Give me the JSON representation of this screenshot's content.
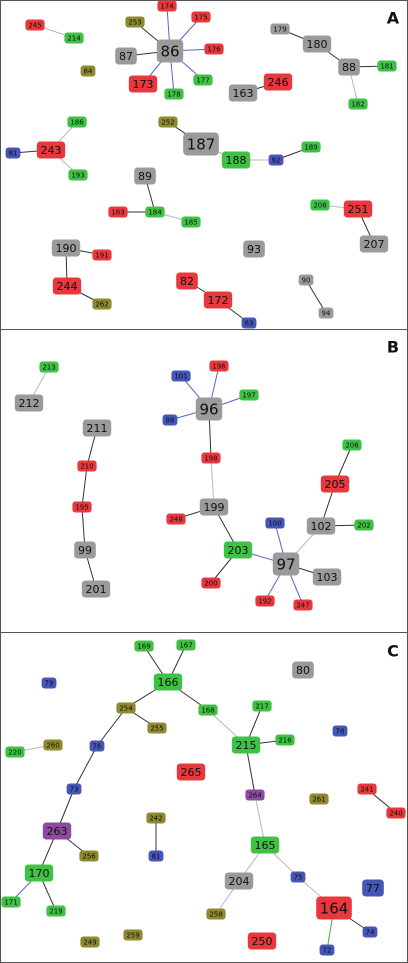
{
  "colors": {
    "red": "#e8383d",
    "green": "#3ec144",
    "gray": "#9a9a9a",
    "blue": "#4555b8",
    "olive": "#8f8a2e",
    "purple": "#8e4aa0",
    "edge_dark": "#333333",
    "edge_light": "#b8b8b8",
    "edge_blue": "#5566c8",
    "edge_green": "#44aa44"
  },
  "panels": [
    {
      "label": "A",
      "nodes": [
        {
          "id": "245",
          "color": "red"
        },
        {
          "id": "214",
          "color": "green"
        },
        {
          "id": "84",
          "color": "olive"
        },
        {
          "id": "253",
          "color": "olive"
        },
        {
          "id": "174",
          "color": "red"
        },
        {
          "id": "175",
          "color": "red"
        },
        {
          "id": "87",
          "color": "gray"
        },
        {
          "id": "86",
          "color": "gray"
        },
        {
          "id": "176",
          "color": "red"
        },
        {
          "id": "173",
          "color": "red"
        },
        {
          "id": "178",
          "color": "green"
        },
        {
          "id": "177",
          "color": "green"
        },
        {
          "id": "179",
          "color": "gray"
        },
        {
          "id": "180",
          "color": "gray"
        },
        {
          "id": "88",
          "color": "gray"
        },
        {
          "id": "181",
          "color": "green"
        },
        {
          "id": "182",
          "color": "green"
        },
        {
          "id": "246",
          "color": "red"
        },
        {
          "id": "163",
          "color": "gray"
        },
        {
          "id": "186",
          "color": "green"
        },
        {
          "id": "81",
          "color": "blue"
        },
        {
          "id": "243",
          "color": "red"
        },
        {
          "id": "193",
          "color": "green"
        },
        {
          "id": "252",
          "color": "olive"
        },
        {
          "id": "187",
          "color": "gray"
        },
        {
          "id": "188",
          "color": "green"
        },
        {
          "id": "92",
          "color": "blue"
        },
        {
          "id": "189",
          "color": "green"
        },
        {
          "id": "89",
          "color": "gray"
        },
        {
          "id": "183",
          "color": "red"
        },
        {
          "id": "184",
          "color": "green"
        },
        {
          "id": "185",
          "color": "green"
        },
        {
          "id": "208",
          "color": "green"
        },
        {
          "id": "251",
          "color": "red"
        },
        {
          "id": "207",
          "color": "gray"
        },
        {
          "id": "190",
          "color": "gray"
        },
        {
          "id": "191",
          "color": "red"
        },
        {
          "id": "93",
          "color": "gray"
        },
        {
          "id": "244",
          "color": "red"
        },
        {
          "id": "262",
          "color": "olive"
        },
        {
          "id": "82",
          "color": "red"
        },
        {
          "id": "172",
          "color": "red"
        },
        {
          "id": "83",
          "color": "blue"
        },
        {
          "id": "90",
          "color": "gray"
        },
        {
          "id": "94",
          "color": "gray"
        }
      ],
      "edges": [
        [
          "245",
          "214",
          "light"
        ],
        [
          "86",
          "87",
          "dark"
        ],
        [
          "86",
          "253",
          "dark"
        ],
        [
          "86",
          "174",
          "blue"
        ],
        [
          "86",
          "175",
          "blue"
        ],
        [
          "86",
          "176",
          "blue"
        ],
        [
          "86",
          "177",
          "blue"
        ],
        [
          "86",
          "178",
          "blue"
        ],
        [
          "86",
          "173",
          "blue"
        ],
        [
          "179",
          "180",
          "dark"
        ],
        [
          "180",
          "88",
          "dark"
        ],
        [
          "88",
          "181",
          "dark"
        ],
        [
          "88",
          "182",
          "light"
        ],
        [
          "163",
          "246",
          "dark"
        ],
        [
          "243",
          "81",
          "dark"
        ],
        [
          "243",
          "186",
          "light"
        ],
        [
          "243",
          "193",
          "light"
        ],
        [
          "252",
          "187",
          "dark"
        ],
        [
          "187",
          "188",
          "light"
        ],
        [
          "188",
          "92",
          "light"
        ],
        [
          "92",
          "189",
          "dark"
        ],
        [
          "89",
          "184",
          "dark"
        ],
        [
          "183",
          "184",
          "dark"
        ],
        [
          "184",
          "185",
          "light"
        ],
        [
          "208",
          "251",
          "light"
        ],
        [
          "251",
          "207",
          "dark"
        ],
        [
          "190",
          "191",
          "dark"
        ],
        [
          "190",
          "244",
          "dark"
        ],
        [
          "244",
          "262",
          "dark"
        ],
        [
          "82",
          "172",
          "dark"
        ],
        [
          "172",
          "83",
          "dark"
        ],
        [
          "90",
          "94",
          "dark"
        ]
      ]
    },
    {
      "label": "B",
      "nodes": [
        {
          "id": "213",
          "color": "green"
        },
        {
          "id": "212",
          "color": "gray"
        },
        {
          "id": "211",
          "color": "gray"
        },
        {
          "id": "210",
          "color": "red"
        },
        {
          "id": "195",
          "color": "red"
        },
        {
          "id": "99",
          "color": "gray"
        },
        {
          "id": "201",
          "color": "gray"
        },
        {
          "id": "101",
          "color": "blue"
        },
        {
          "id": "196",
          "color": "red"
        },
        {
          "id": "197",
          "color": "green"
        },
        {
          "id": "98",
          "color": "blue"
        },
        {
          "id": "96",
          "color": "gray"
        },
        {
          "id": "198",
          "color": "red"
        },
        {
          "id": "199",
          "color": "gray"
        },
        {
          "id": "248",
          "color": "red"
        },
        {
          "id": "203",
          "color": "green"
        },
        {
          "id": "200",
          "color": "red"
        },
        {
          "id": "206",
          "color": "green"
        },
        {
          "id": "205",
          "color": "red"
        },
        {
          "id": "100",
          "color": "blue"
        },
        {
          "id": "102",
          "color": "gray"
        },
        {
          "id": "202",
          "color": "green"
        },
        {
          "id": "97",
          "color": "gray"
        },
        {
          "id": "103",
          "color": "gray"
        },
        {
          "id": "192",
          "color": "red"
        },
        {
          "id": "247",
          "color": "red"
        }
      ],
      "edges": [
        [
          "213",
          "212",
          "light"
        ],
        [
          "211",
          "210",
          "dark"
        ],
        [
          "210",
          "195",
          "dark"
        ],
        [
          "195",
          "99",
          "dark"
        ],
        [
          "99",
          "201",
          "dark"
        ],
        [
          "96",
          "101",
          "blue"
        ],
        [
          "96",
          "196",
          "blue"
        ],
        [
          "96",
          "197",
          "blue"
        ],
        [
          "96",
          "98",
          "blue"
        ],
        [
          "96",
          "198",
          "dark"
        ],
        [
          "198",
          "199",
          "light"
        ],
        [
          "199",
          "248",
          "dark"
        ],
        [
          "199",
          "203",
          "dark"
        ],
        [
          "203",
          "200",
          "dark"
        ],
        [
          "203",
          "97",
          "blue"
        ],
        [
          "97",
          "100",
          "blue"
        ],
        [
          "97",
          "102",
          "light"
        ],
        [
          "97",
          "103",
          "dark"
        ],
        [
          "97",
          "192",
          "blue"
        ],
        [
          "97",
          "247",
          "blue"
        ],
        [
          "102",
          "205",
          "dark"
        ],
        [
          "102",
          "202",
          "dark"
        ],
        [
          "205",
          "206",
          "dark"
        ]
      ]
    },
    {
      "label": "C",
      "nodes": [
        {
          "id": "169",
          "color": "green"
        },
        {
          "id": "167",
          "color": "green"
        },
        {
          "id": "80",
          "color": "gray"
        },
        {
          "id": "79",
          "color": "blue"
        },
        {
          "id": "166",
          "color": "green"
        },
        {
          "id": "254",
          "color": "olive"
        },
        {
          "id": "168",
          "color": "green"
        },
        {
          "id": "217",
          "color": "green"
        },
        {
          "id": "255",
          "color": "olive"
        },
        {
          "id": "78",
          "color": "blue"
        },
        {
          "id": "220",
          "color": "green"
        },
        {
          "id": "260",
          "color": "olive"
        },
        {
          "id": "76",
          "color": "blue"
        },
        {
          "id": "215",
          "color": "green"
        },
        {
          "id": "216",
          "color": "green"
        },
        {
          "id": "265",
          "color": "red"
        },
        {
          "id": "264",
          "color": "purple"
        },
        {
          "id": "261",
          "color": "olive"
        },
        {
          "id": "241",
          "color": "red"
        },
        {
          "id": "240",
          "color": "red"
        },
        {
          "id": "73",
          "color": "blue"
        },
        {
          "id": "242",
          "color": "olive"
        },
        {
          "id": "263",
          "color": "purple"
        },
        {
          "id": "256",
          "color": "olive"
        },
        {
          "id": "165",
          "color": "green"
        },
        {
          "id": "81",
          "color": "blue"
        },
        {
          "id": "170",
          "color": "green"
        },
        {
          "id": "204",
          "color": "gray"
        },
        {
          "id": "75",
          "color": "blue"
        },
        {
          "id": "77",
          "color": "blue"
        },
        {
          "id": "171",
          "color": "green"
        },
        {
          "id": "219",
          "color": "green"
        },
        {
          "id": "258",
          "color": "olive"
        },
        {
          "id": "164",
          "color": "red"
        },
        {
          "id": "74",
          "color": "blue"
        },
        {
          "id": "249",
          "color": "olive"
        },
        {
          "id": "259",
          "color": "olive"
        },
        {
          "id": "250",
          "color": "red"
        },
        {
          "id": "72",
          "color": "blue"
        }
      ],
      "edges": [
        [
          "166",
          "169",
          "dark"
        ],
        [
          "166",
          "167",
          "dark"
        ],
        [
          "166",
          "254",
          "dark"
        ],
        [
          "166",
          "168",
          "dark"
        ],
        [
          "168",
          "215",
          "light"
        ],
        [
          "254",
          "255",
          "dark"
        ],
        [
          "254",
          "76",
          "dark"
        ],
        [
          "76",
          "73",
          "dark"
        ],
        [
          "73",
          "263",
          "dark"
        ],
        [
          "263",
          "256",
          "dark"
        ],
        [
          "263",
          "170",
          "dark"
        ],
        [
          "170",
          "171",
          "blue"
        ],
        [
          "170",
          "219",
          "dark"
        ],
        [
          "220",
          "260",
          "light"
        ],
        [
          "215",
          "217",
          "dark"
        ],
        [
          "215",
          "216",
          "dark"
        ],
        [
          "215",
          "264",
          "dark"
        ],
        [
          "264",
          "165",
          "light"
        ],
        [
          "165",
          "204",
          "light"
        ],
        [
          "204",
          "258",
          "light"
        ],
        [
          "165",
          "75",
          "light"
        ],
        [
          "75",
          "164",
          "light"
        ],
        [
          "164",
          "74",
          "dark"
        ],
        [
          "164",
          "72",
          "green"
        ],
        [
          "241",
          "240",
          "dark"
        ],
        [
          "242",
          "81",
          "dark"
        ]
      ]
    }
  ]
}
